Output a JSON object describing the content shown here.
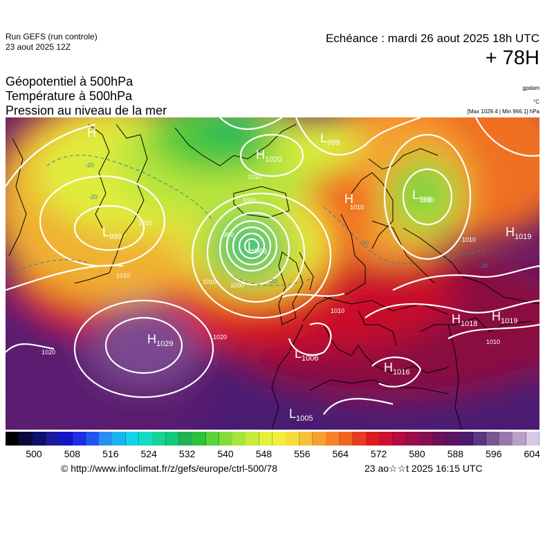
{
  "header": {
    "run_title": "Run GEFS (run controle)",
    "run_date": "23 aout 2025 12Z",
    "echeance": "Echéance : mardi 26 aout 2025 18h UTC",
    "lead_time": "+ 78H"
  },
  "fields": {
    "line1": "Géopotentiel à 500hPa",
    "line2": "Température à 500hPa",
    "line3": "Pression au niveau de la mer"
  },
  "units": {
    "geopotential": "gpdam",
    "temperature": "°C",
    "maxmin": "[Max 1029.4 | Min 966.1] hPa"
  },
  "pressure_centers": [
    {
      "letter": "H",
      "value": "1029"
    },
    {
      "letter": "L",
      "value": "966"
    },
    {
      "letter": "H",
      "value": "1020"
    },
    {
      "letter": "L",
      "value": "999"
    },
    {
      "letter": "L",
      "value": "1006"
    },
    {
      "letter": "H",
      "value": "1016"
    },
    {
      "letter": "L",
      "value": "1005"
    },
    {
      "letter": "H",
      "value": "1018"
    },
    {
      "letter": "H",
      "value": "1019"
    },
    {
      "letter": "H",
      "value": "1019"
    },
    {
      "letter": "L",
      "value": "998"
    },
    {
      "letter": "L",
      "value": "999"
    },
    {
      "letter": "H",
      "value": ""
    },
    {
      "letter": "H",
      "value": ""
    }
  ],
  "isobar_labels": [
    "990",
    "1000",
    "1010",
    "1020",
    "1010",
    "1000",
    "1010",
    "1020",
    "1020",
    "1010",
    "1010",
    "1010",
    "1010",
    "1010"
  ],
  "isotherm_labels": [
    "-20",
    "-20",
    "-20",
    "-20",
    "-20"
  ],
  "colorbar": {
    "colors": [
      "#000000",
      "#0b0b3a",
      "#10106a",
      "#1a1a9a",
      "#1414c8",
      "#1d2de8",
      "#2255f0",
      "#2a8ef0",
      "#1ab4f0",
      "#14d2e8",
      "#14dcc0",
      "#18d296",
      "#16c87a",
      "#22b450",
      "#2cc43a",
      "#5ad23c",
      "#82dc3c",
      "#a8e43c",
      "#c8ec3c",
      "#e6f03c",
      "#f0f03c",
      "#f8dc3c",
      "#f8c03c",
      "#f6a030",
      "#f58228",
      "#f06420",
      "#e83c1e",
      "#dc1c1c",
      "#cc1030",
      "#b40c40",
      "#9c0c4c",
      "#86104e",
      "#6e1058",
      "#5a1462",
      "#4a1a6c",
      "#5a3680",
      "#7a5494",
      "#9878ac",
      "#b8a0c8",
      "#d8c8e4"
    ],
    "ticks": [
      "500",
      "508",
      "516",
      "524",
      "532",
      "540",
      "548",
      "556",
      "564",
      "572",
      "580",
      "588",
      "596",
      "604"
    ]
  },
  "footer": {
    "url": "© http://www.infoclimat.fr/z/gefs/europe/ctrl-500/78",
    "timestamp": "23 ao☆☆t 2025 16:15 UTC"
  }
}
